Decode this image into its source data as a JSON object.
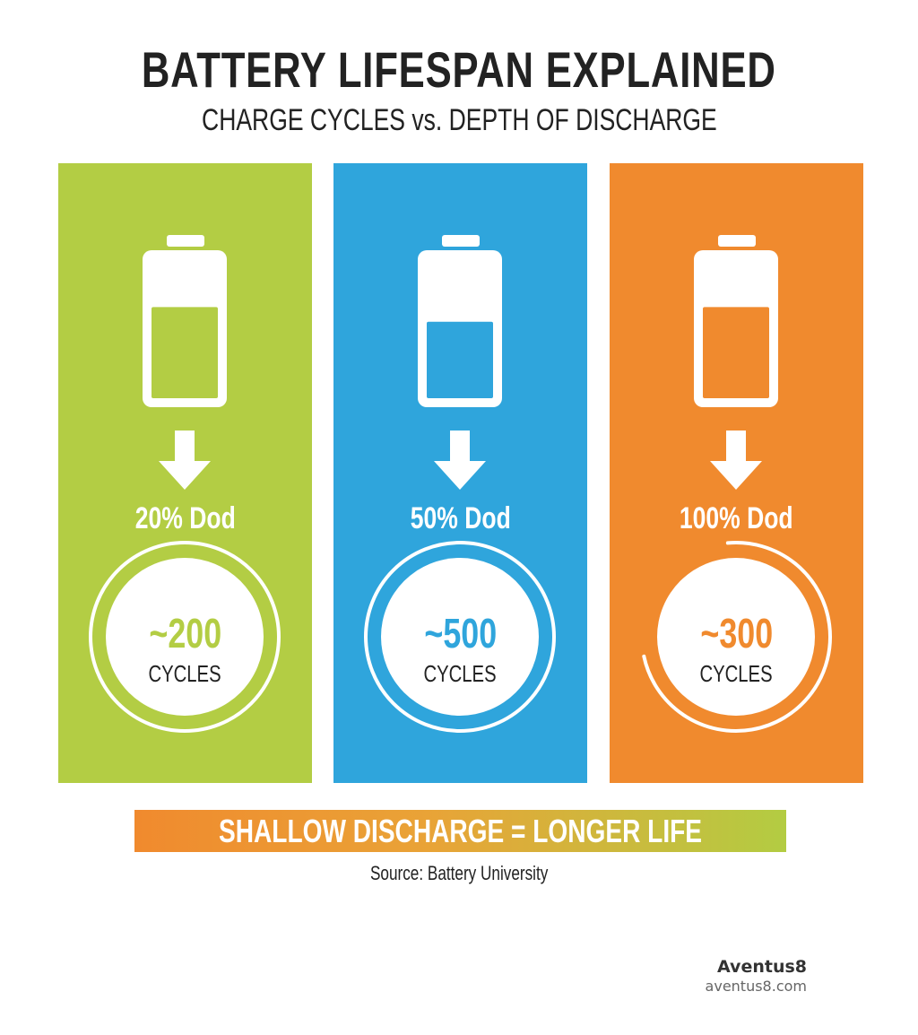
{
  "header": {
    "title": "BATTERY LIFESPAN EXPLAINED",
    "subtitle": "CHARGE CYCLES vs. DEPTH OF DISCHARGE"
  },
  "panels": [
    {
      "dod_label": "20% Dod",
      "value": "~200",
      "unit": "CYCLES",
      "color": "#b3cd44",
      "battery_fill": 0.62,
      "ring_arc": "full",
      "icons": [
        "battery-icon",
        "arrow-down-icon"
      ]
    },
    {
      "dod_label": "50% Dod",
      "value": "~500",
      "unit": "CYCLES",
      "color": "#2fa5dc",
      "battery_fill": 0.52,
      "ring_arc": "full",
      "icons": [
        "battery-icon",
        "arrow-down-icon"
      ]
    },
    {
      "dod_label": "100% Dod",
      "value": "~300",
      "unit": "CYCLES",
      "color": "#f08a2e",
      "battery_fill": 0.62,
      "ring_arc": "partial",
      "icons": [
        "battery-icon",
        "arrow-down-icon"
      ]
    }
  ],
  "banner": {
    "text": "SHALLOW DISCHARGE = LONGER LIFE",
    "gradient": [
      "#f08a2e",
      "#b3cc42"
    ]
  },
  "source": "Source: Battery University",
  "brand": {
    "name": "Aventus8",
    "url": "aventus8.com"
  }
}
